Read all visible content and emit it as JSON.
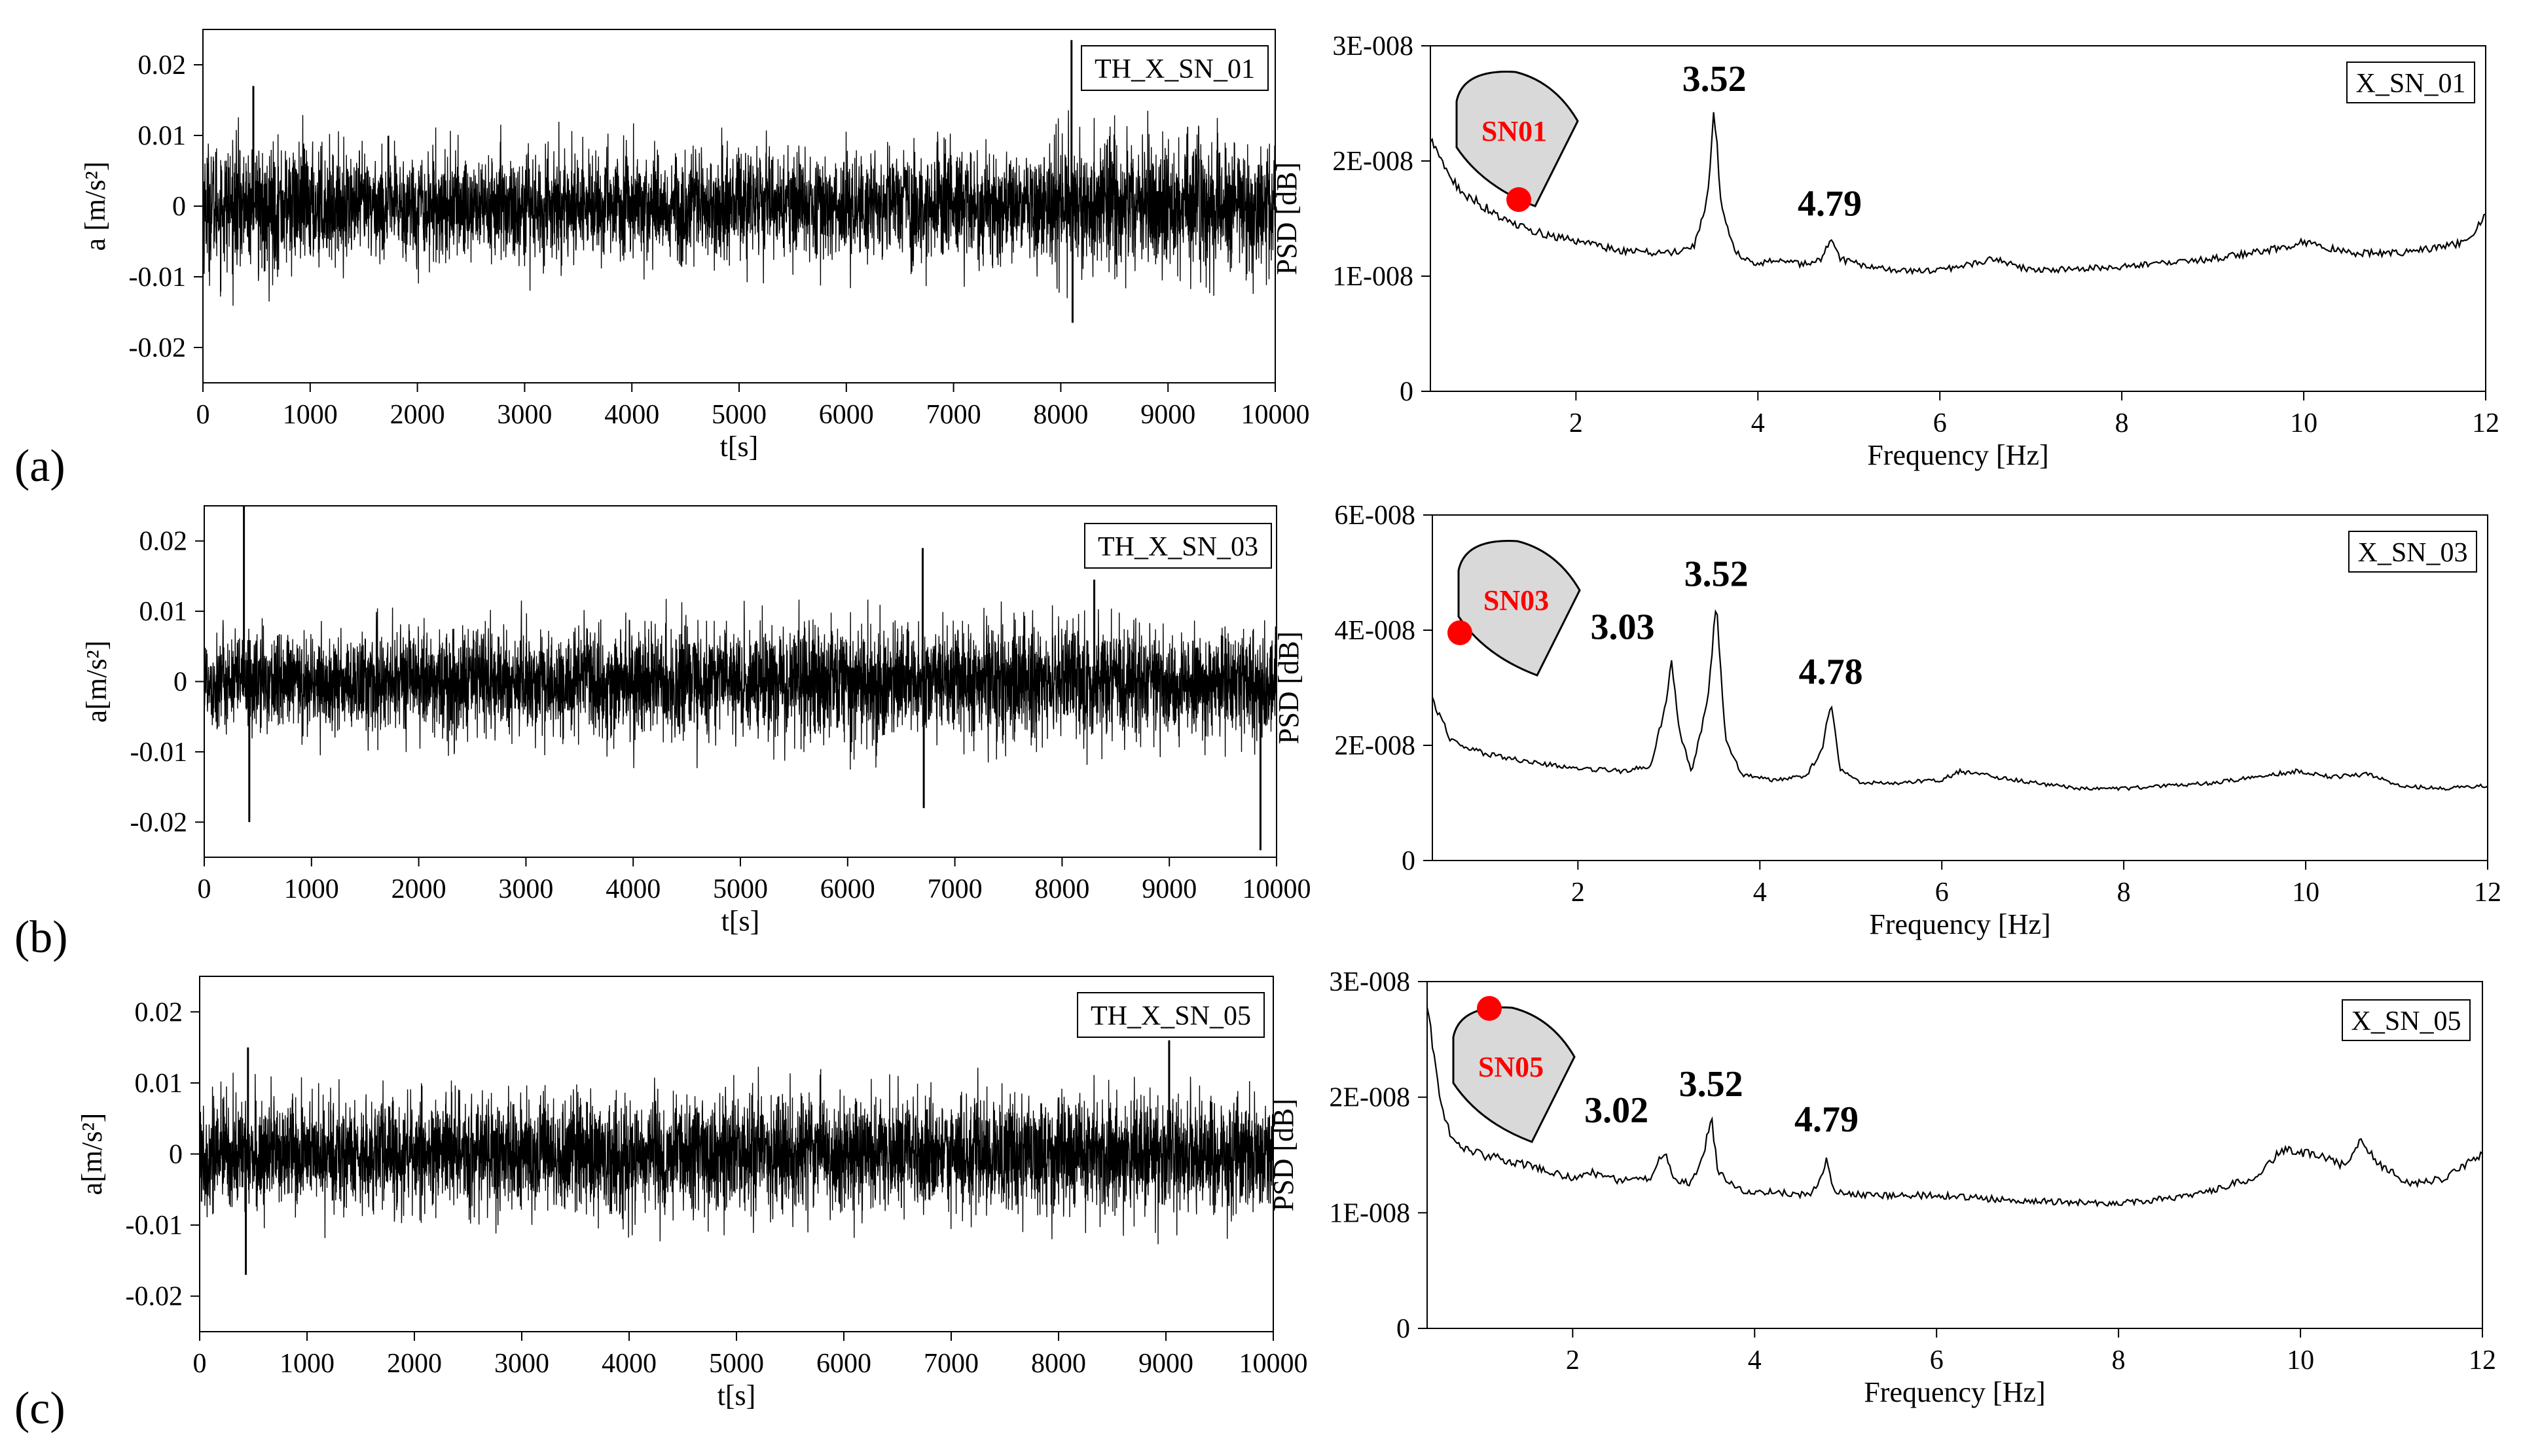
{
  "panel_labels": [
    "(a)",
    "(b)",
    "(c)"
  ],
  "colors": {
    "trace": "#000000",
    "marker": "#ff0000",
    "marker_text": "#ff0000",
    "shape_fill": "#d9d9d9",
    "frame": "#000000"
  },
  "chart_data": [
    {
      "type": "line",
      "legend": "TH_X_SN_01",
      "xlabel": "t[s]",
      "ylabel": "a [m/s²]",
      "xlim": [
        0,
        10000
      ],
      "ylim": [
        -0.025,
        0.025
      ],
      "xticks": [
        0,
        1000,
        2000,
        3000,
        4000,
        5000,
        6000,
        7000,
        8000,
        9000,
        10000
      ],
      "yticks": [
        -0.02,
        -0.01,
        0,
        0.01,
        0.02
      ],
      "ytick_labels": [
        "-0.02",
        "-0.01",
        "0",
        "0.01",
        "0.02"
      ],
      "envelope": {
        "t": [
          0,
          1000,
          1250,
          2000,
          3000,
          4000,
          5000,
          6000,
          7000,
          7800,
          8000,
          9000,
          10000
        ],
        "amp": [
          0.0125,
          0.012,
          0.0098,
          0.0105,
          0.0108,
          0.0105,
          0.0105,
          0.0105,
          0.0103,
          0.0105,
          0.0128,
          0.0128,
          0.0118
        ]
      },
      "spikes": [
        {
          "t": 470,
          "amp": 0.017
        },
        {
          "t": 8100,
          "amp": 0.0235
        },
        {
          "t": 8110,
          "amp": -0.0165
        }
      ]
    },
    {
      "type": "line",
      "legend": "X_SN_01",
      "xlabel": "Frequency [Hz]",
      "ylabel": "PSD [dB]",
      "xlim": [
        0.4,
        12
      ],
      "ylim": [
        0,
        3e-08
      ],
      "xticks": [
        2,
        4,
        6,
        8,
        10,
        12
      ],
      "yticks": [
        0,
        1e-08,
        2e-08,
        3e-08
      ],
      "ytick_labels": [
        "0",
        "1E-008",
        "2E-008",
        "3E-008"
      ],
      "x": [
        0.4,
        0.6,
        0.8,
        1.0,
        1.2,
        1.5,
        2.0,
        2.5,
        3.0,
        3.3,
        3.45,
        3.52,
        3.6,
        3.75,
        4.0,
        4.2,
        4.5,
        4.7,
        4.79,
        4.9,
        5.2,
        5.5,
        6.0,
        6.6,
        7.0,
        8.0,
        9.0,
        9.8,
        10.0,
        10.5,
        11.0,
        11.5,
        11.8,
        12.0
      ],
      "y": [
        2.2e-08,
        1.85e-08,
        1.7e-08,
        1.6e-08,
        1.5e-08,
        1.4e-08,
        1.3e-08,
        1.22e-08,
        1.2e-08,
        1.25e-08,
        1.7e-08,
        2.45e-08,
        1.6e-08,
        1.2e-08,
        1.1e-08,
        1.15e-08,
        1.1e-08,
        1.15e-08,
        1.32e-08,
        1.15e-08,
        1.08e-08,
        1.05e-08,
        1.05e-08,
        1.15e-08,
        1.05e-08,
        1.08e-08,
        1.15e-08,
        1.25e-08,
        1.3e-08,
        1.2e-08,
        1.2e-08,
        1.25e-08,
        1.3e-08,
        1.55e-08
      ],
      "annotations": [
        {
          "text": "3.52",
          "x": 3.52,
          "y": 2.45e-08
        },
        {
          "text": "4.79",
          "x": 4.79,
          "y": 1.32e-08
        }
      ],
      "sensor": {
        "label": "SN01",
        "marker_position": "bottom-edge"
      }
    },
    {
      "type": "line",
      "legend": "TH_X_SN_03",
      "xlabel": "t[s]",
      "ylabel": "a[m/s²]",
      "xlim": [
        0,
        10000
      ],
      "ylim": [
        -0.025,
        0.025
      ],
      "xticks": [
        0,
        1000,
        2000,
        3000,
        4000,
        5000,
        6000,
        7000,
        8000,
        9000,
        10000
      ],
      "yticks": [
        -0.02,
        -0.01,
        0,
        0.01,
        0.02
      ],
      "ytick_labels": [
        "-0.02",
        "-0.01",
        "0",
        "0.01",
        "0.02"
      ],
      "envelope": {
        "t": [
          0,
          1000,
          2000,
          3000,
          4000,
          5000,
          6000,
          7000,
          8000,
          9000,
          10000
        ],
        "amp": [
          0.0095,
          0.0095,
          0.0098,
          0.0102,
          0.0108,
          0.0112,
          0.0115,
          0.011,
          0.0112,
          0.0102,
          0.0098
        ]
      },
      "spikes": [
        {
          "t": 370,
          "amp": 0.025
        },
        {
          "t": 420,
          "amp": -0.02
        },
        {
          "t": 6700,
          "amp": 0.019
        },
        {
          "t": 6710,
          "amp": -0.018
        },
        {
          "t": 8300,
          "amp": 0.0145
        },
        {
          "t": 9850,
          "amp": -0.024
        }
      ]
    },
    {
      "type": "line",
      "legend": "X_SN_03",
      "xlabel": "Frequency [Hz]",
      "ylabel": "PSD [dB]",
      "xlim": [
        0.4,
        12
      ],
      "ylim": [
        0,
        6e-08
      ],
      "xticks": [
        2,
        4,
        6,
        8,
        10,
        12
      ],
      "yticks": [
        0,
        2e-08,
        4e-08,
        6e-08
      ],
      "ytick_labels": [
        "0",
        "2E-008",
        "4E-008",
        "6E-008"
      ],
      "x": [
        0.4,
        0.6,
        0.8,
        1.0,
        1.5,
        2.0,
        2.5,
        2.8,
        2.95,
        3.03,
        3.12,
        3.25,
        3.42,
        3.52,
        3.62,
        3.8,
        4.1,
        4.5,
        4.68,
        4.78,
        4.88,
        5.1,
        5.5,
        6.0,
        6.2,
        7.0,
        7.5,
        8.0,
        9.0,
        9.9,
        10.3,
        10.7,
        11.0,
        11.5,
        12.0
      ],
      "y": [
        2.8e-08,
        2.1e-08,
        1.95e-08,
        1.85e-08,
        1.7e-08,
        1.6e-08,
        1.55e-08,
        1.65e-08,
        2.6e-08,
        3.45e-08,
        2.2e-08,
        1.55e-08,
        2.7e-08,
        4.45e-08,
        2.1e-08,
        1.5e-08,
        1.4e-08,
        1.45e-08,
        1.9e-08,
        2.75e-08,
        1.6e-08,
        1.35e-08,
        1.35e-08,
        1.4e-08,
        1.55e-08,
        1.35e-08,
        1.25e-08,
        1.25e-08,
        1.35e-08,
        1.55e-08,
        1.45e-08,
        1.5e-08,
        1.3e-08,
        1.25e-08,
        1.3e-08
      ],
      "annotations": [
        {
          "text": "3.03",
          "x": 3.03,
          "y": 3.45e-08
        },
        {
          "text": "3.52",
          "x": 3.52,
          "y": 4.45e-08
        },
        {
          "text": "4.78",
          "x": 4.78,
          "y": 2.75e-08
        }
      ],
      "sensor": {
        "label": "SN03",
        "marker_position": "left-edge"
      }
    },
    {
      "type": "line",
      "legend": "TH_X_SN_05",
      "xlabel": "t[s]",
      "ylabel": "a[m/s²]",
      "xlim": [
        0,
        10000
      ],
      "ylim": [
        -0.025,
        0.025
      ],
      "xticks": [
        0,
        1000,
        2000,
        3000,
        4000,
        5000,
        6000,
        7000,
        8000,
        9000,
        10000
      ],
      "yticks": [
        -0.02,
        -0.01,
        0,
        0.01,
        0.02
      ],
      "ytick_labels": [
        "-0.02",
        "-0.01",
        "0",
        "0.01",
        "0.02"
      ],
      "envelope": {
        "t": [
          0,
          1000,
          2000,
          3000,
          4000,
          5000,
          6000,
          7000,
          8000,
          9000,
          10000
        ],
        "amp": [
          0.011,
          0.0105,
          0.0108,
          0.011,
          0.0112,
          0.011,
          0.0112,
          0.0108,
          0.011,
          0.0112,
          0.011
        ]
      },
      "spikes": [
        {
          "t": 430,
          "amp": -0.017
        },
        {
          "t": 450,
          "amp": 0.015
        },
        {
          "t": 9030,
          "amp": 0.016
        }
      ]
    },
    {
      "type": "line",
      "legend": "X_SN_05",
      "xlabel": "Frequency [Hz]",
      "ylabel": "PSD [dB]",
      "xlim": [
        0.4,
        12
      ],
      "ylim": [
        0,
        3e-08
      ],
      "xticks": [
        2,
        4,
        6,
        8,
        10,
        12
      ],
      "yticks": [
        0,
        1e-08,
        2e-08,
        3e-08
      ],
      "ytick_labels": [
        "0",
        "1E-008",
        "2E-008",
        "3E-008"
      ],
      "x": [
        0.4,
        0.5,
        0.6,
        0.7,
        0.8,
        1.0,
        1.3,
        1.6,
        2.0,
        2.2,
        2.5,
        2.85,
        2.95,
        3.02,
        3.1,
        3.3,
        3.44,
        3.52,
        3.6,
        3.8,
        4.2,
        4.6,
        4.72,
        4.79,
        4.86,
        5.2,
        6.0,
        7.0,
        8.0,
        8.8,
        9.5,
        9.8,
        10.2,
        10.5,
        10.65,
        10.9,
        11.2,
        11.6,
        12.0
      ],
      "y": [
        2.8e-08,
        2.2e-08,
        1.8e-08,
        1.6e-08,
        1.55e-08,
        1.5e-08,
        1.45e-08,
        1.4e-08,
        1.3e-08,
        1.35e-08,
        1.28e-08,
        1.3e-08,
        1.45e-08,
        1.5e-08,
        1.3e-08,
        1.25e-08,
        1.5e-08,
        1.85e-08,
        1.35e-08,
        1.2e-08,
        1.18e-08,
        1.15e-08,
        1.3e-08,
        1.45e-08,
        1.2e-08,
        1.15e-08,
        1.15e-08,
        1.1e-08,
        1.08e-08,
        1.15e-08,
        1.3e-08,
        1.55e-08,
        1.5e-08,
        1.4e-08,
        1.62e-08,
        1.4e-08,
        1.25e-08,
        1.3e-08,
        1.52e-08
      ],
      "annotations": [
        {
          "text": "3.02",
          "x": 3.02,
          "y": 1.5e-08
        },
        {
          "text": "3.52",
          "x": 3.52,
          "y": 1.85e-08
        },
        {
          "text": "4.79",
          "x": 4.79,
          "y": 1.45e-08
        }
      ],
      "sensor": {
        "label": "SN05",
        "marker_position": "top-edge"
      }
    }
  ]
}
